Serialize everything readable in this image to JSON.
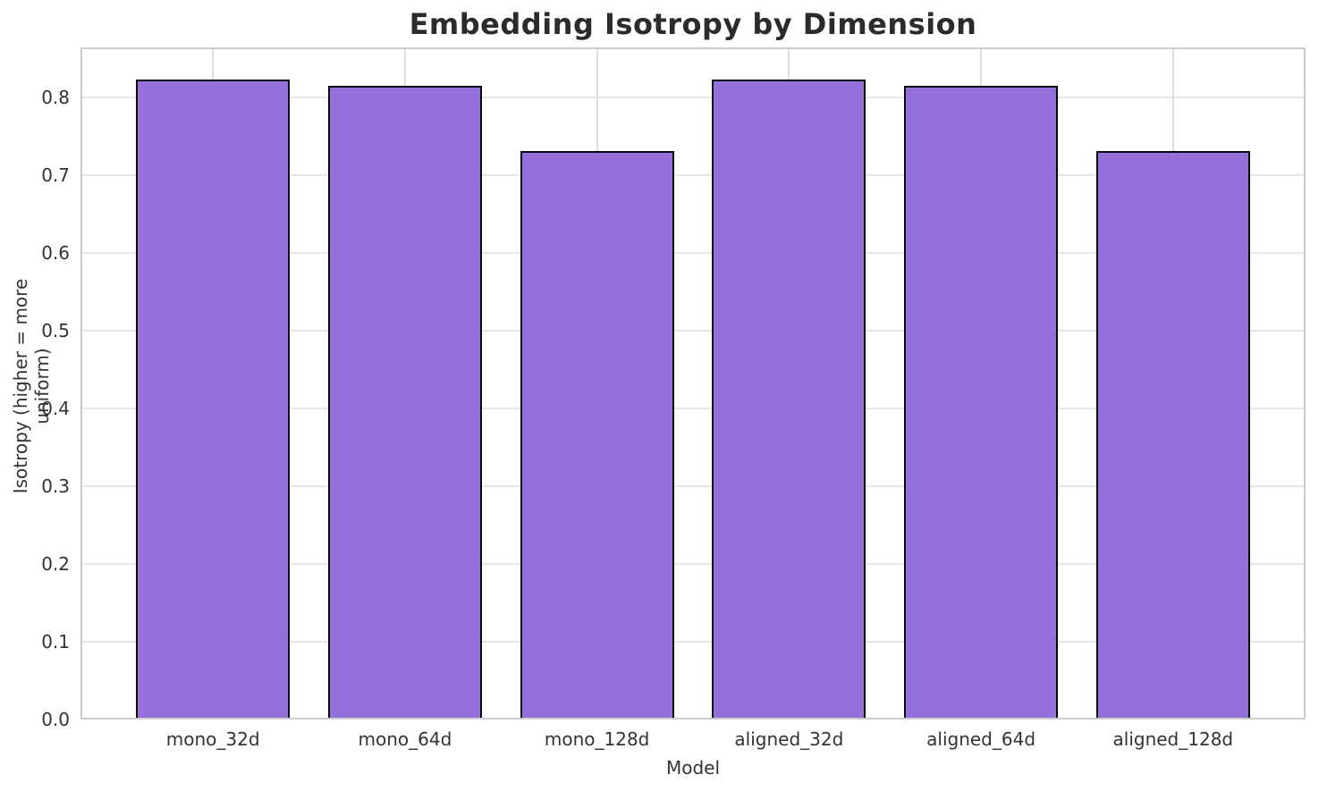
{
  "chart_data": {
    "type": "bar",
    "title": "Embedding Isotropy by Dimension",
    "xlabel": "Model",
    "ylabel": "Isotropy (higher = more uniform)",
    "categories": [
      "mono_32d",
      "mono_64d",
      "mono_128d",
      "aligned_32d",
      "aligned_64d",
      "aligned_128d"
    ],
    "values": [
      0.823,
      0.815,
      0.731,
      0.823,
      0.815,
      0.731
    ],
    "yticks": [
      "0.0",
      "0.1",
      "0.2",
      "0.3",
      "0.4",
      "0.5",
      "0.6",
      "0.7",
      "0.8"
    ],
    "ytick_values": [
      0.0,
      0.1,
      0.2,
      0.3,
      0.4,
      0.5,
      0.6,
      0.7,
      0.8
    ],
    "ylim": [
      0,
      0.864
    ],
    "xlim": [
      -0.69,
      5.69
    ],
    "bar_width": 0.8,
    "bar_color": "#9370DB",
    "bar_edge_color": "#0a0a0a",
    "grid": true,
    "grid_color": "#e7e7e7",
    "spine_color": "#cccccc",
    "legend": null
  }
}
